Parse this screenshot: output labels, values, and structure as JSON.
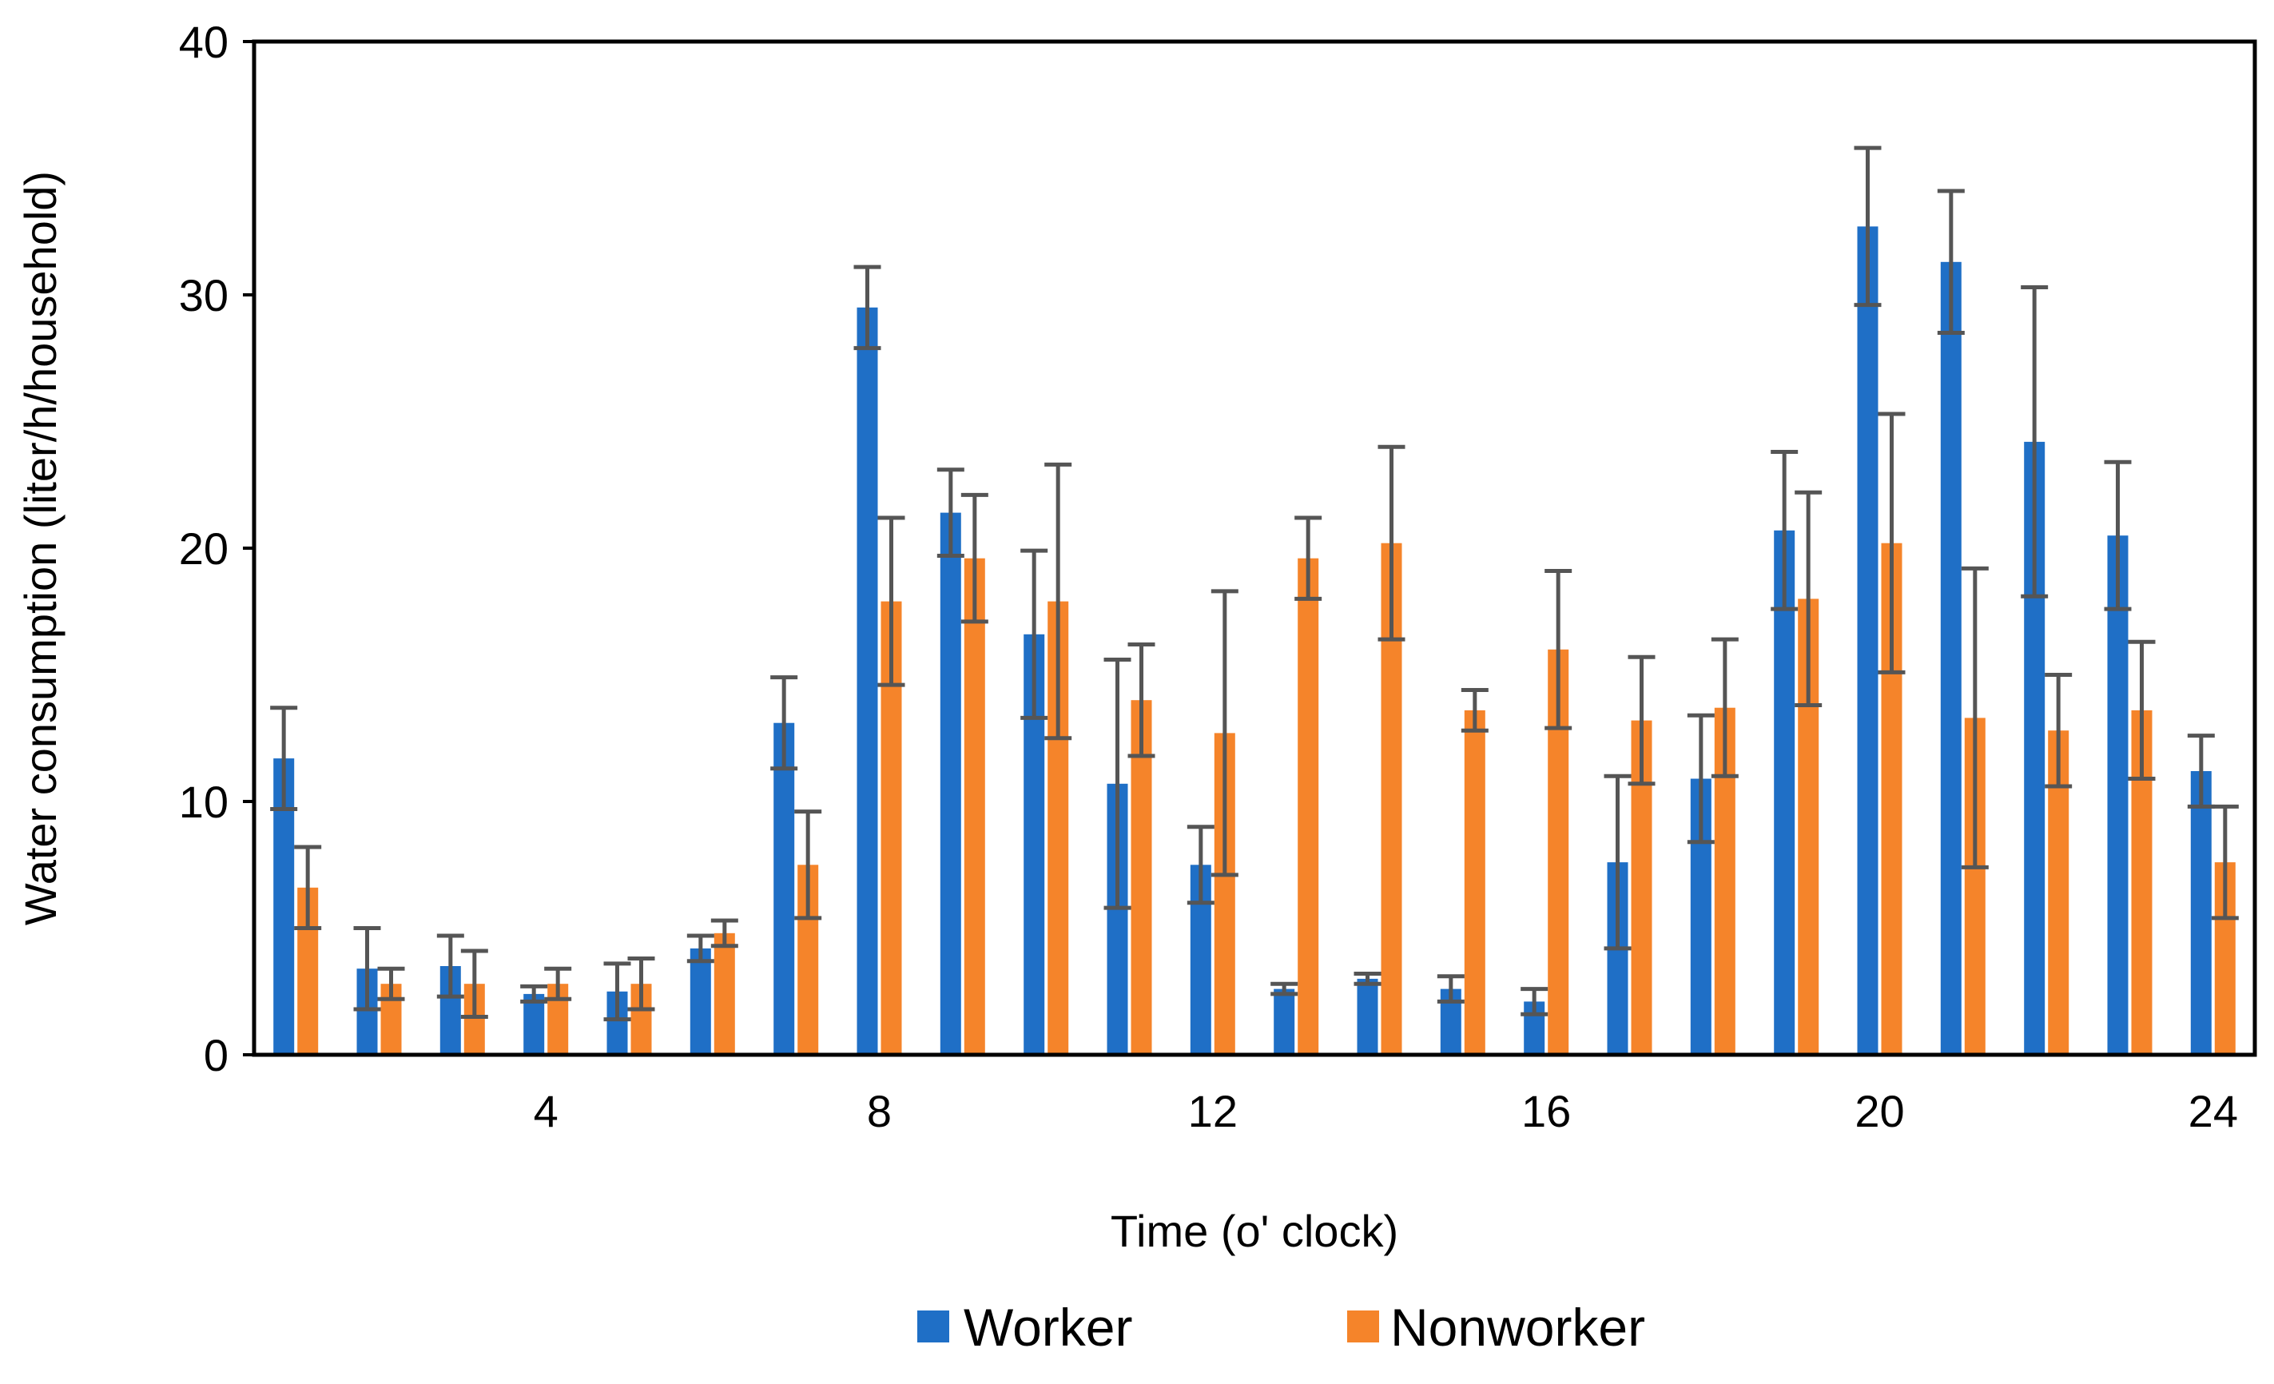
{
  "chart_data": {
    "type": "bar",
    "title": "",
    "xlabel": "Time (o' clock)",
    "ylabel": "Water consumption (liter/h/household)",
    "ylim": [
      0,
      40
    ],
    "y_ticks": [
      0,
      10,
      20,
      30,
      40
    ],
    "x_ticks": [
      4,
      8,
      12,
      16,
      20,
      24
    ],
    "categories": [
      1,
      2,
      3,
      4,
      5,
      6,
      7,
      8,
      9,
      10,
      11,
      12,
      13,
      14,
      15,
      16,
      17,
      18,
      19,
      20,
      21,
      22,
      23,
      24
    ],
    "series": [
      {
        "name": "Worker",
        "color": "#1f6fc6",
        "values": [
          11.7,
          3.4,
          3.5,
          2.4,
          2.5,
          4.2,
          13.1,
          29.5,
          21.4,
          16.6,
          10.7,
          7.5,
          2.6,
          3.0,
          2.6,
          2.1,
          7.6,
          10.9,
          20.7,
          32.7,
          31.3,
          24.2,
          20.5,
          11.2
        ],
        "errors": [
          2.0,
          1.6,
          1.2,
          0.3,
          1.1,
          0.5,
          1.8,
          1.6,
          1.7,
          3.3,
          4.9,
          1.5,
          0.2,
          0.2,
          0.5,
          0.5,
          3.4,
          2.5,
          3.1,
          3.1,
          2.8,
          6.1,
          2.9,
          1.4
        ]
      },
      {
        "name": "Nonworker",
        "color": "#f5842a",
        "values": [
          6.6,
          2.8,
          2.8,
          2.8,
          2.8,
          4.8,
          7.5,
          17.9,
          19.6,
          17.9,
          14.0,
          12.7,
          19.6,
          20.2,
          13.6,
          16.0,
          13.2,
          13.7,
          18.0,
          20.2,
          13.3,
          12.8,
          13.6,
          7.6
        ],
        "errors": [
          1.6,
          0.6,
          1.3,
          0.6,
          1.0,
          0.5,
          2.1,
          3.3,
          2.5,
          5.4,
          2.2,
          5.6,
          1.6,
          3.8,
          0.8,
          3.1,
          2.5,
          2.7,
          4.2,
          5.1,
          5.9,
          2.2,
          2.7,
          2.2
        ]
      }
    ],
    "legend_position": "bottom-center"
  }
}
